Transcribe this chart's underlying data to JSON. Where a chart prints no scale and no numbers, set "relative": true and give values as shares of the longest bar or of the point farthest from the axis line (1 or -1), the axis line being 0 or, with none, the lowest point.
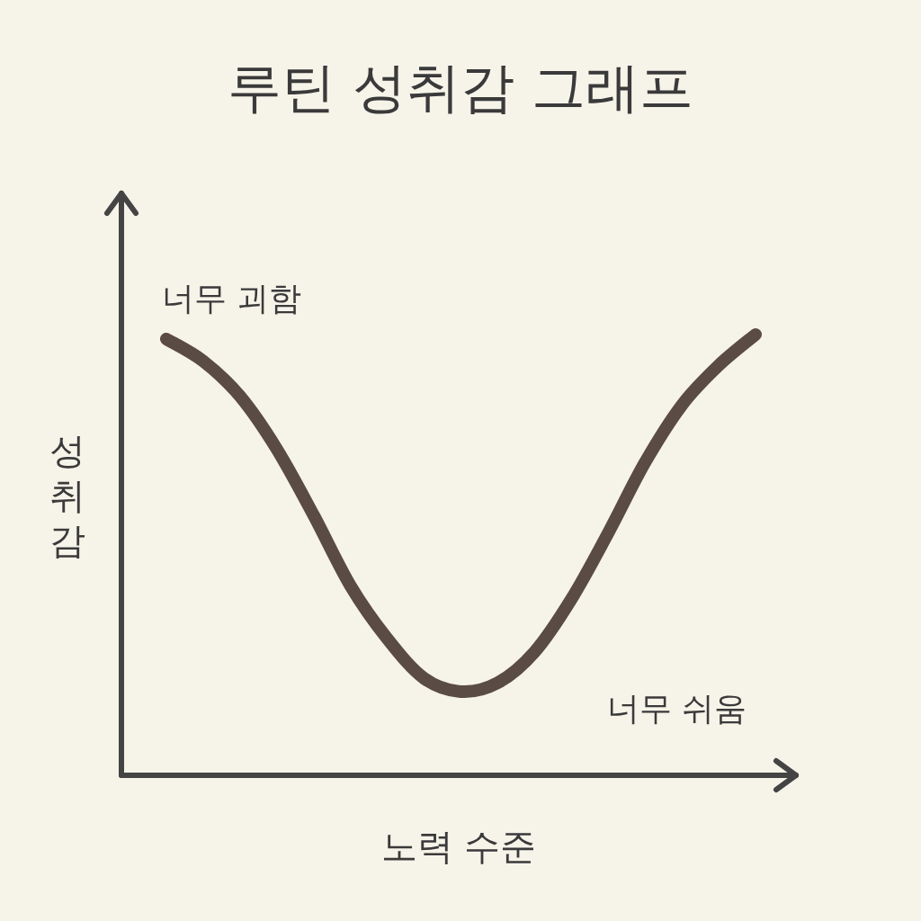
{
  "chart_data": {
    "type": "line",
    "title": "루틴 성취감 그래프",
    "xlabel": "노력 수준",
    "ylabel": "성취감",
    "relative": true,
    "annotations": [
      "너무 괴함",
      "너무 쉬움"
    ],
    "categories": [
      null,
      null,
      null,
      null,
      null,
      null,
      null,
      null,
      null,
      null,
      null,
      null,
      null,
      null,
      null,
      null,
      null
    ],
    "color": "#5a4b45",
    "values": [
      0.99,
      0.94,
      0.86,
      0.74,
      0.59,
      0.43,
      0.31,
      0.22,
      0.19,
      0.21,
      0.28,
      0.4,
      0.55,
      0.71,
      0.84,
      0.93,
      1
    ]
  }
}
